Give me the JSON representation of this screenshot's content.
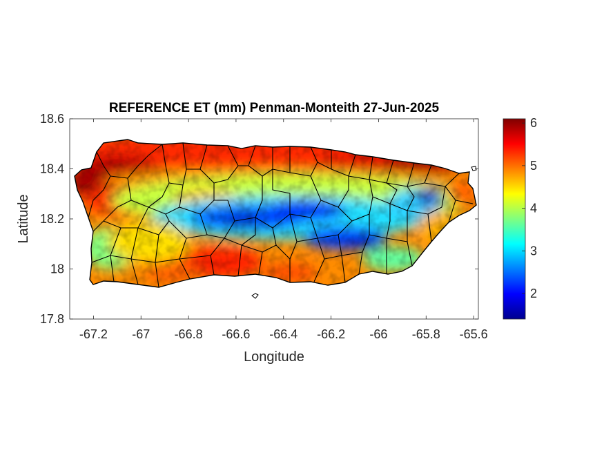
{
  "title": "REFERENCE ET (mm) Penman-Monteith 27-Jun-2025",
  "chart_data": {
    "type": "heatmap",
    "title": "REFERENCE ET (mm) Penman-Monteith 27-Jun-2025",
    "xlabel": "Longitude",
    "ylabel": "Latitude",
    "xlim": [
      -67.3,
      -65.58
    ],
    "ylim": [
      17.8,
      18.6
    ],
    "xticks": [
      -67.2,
      -67,
      -66.8,
      -66.6,
      -66.4,
      -66.2,
      -66,
      -65.8,
      -65.6
    ],
    "xtick_labels": [
      "-67.2",
      "-67",
      "-66.8",
      "-66.6",
      "-66.4",
      "-66.2",
      "-66",
      "-65.8",
      "-65.6"
    ],
    "yticks": [
      17.8,
      18,
      18.2,
      18.4,
      18.6
    ],
    "ytick_labels": [
      "17.8",
      "18",
      "18.2",
      "18.4",
      "18.6"
    ],
    "colorbar": {
      "colormap": "jet",
      "clim": [
        1.4,
        6.1
      ],
      "ticks": [
        2,
        3,
        4,
        5,
        6
      ],
      "tick_labels": [
        "2",
        "3",
        "4",
        "5",
        "6"
      ]
    },
    "grid": false
  }
}
